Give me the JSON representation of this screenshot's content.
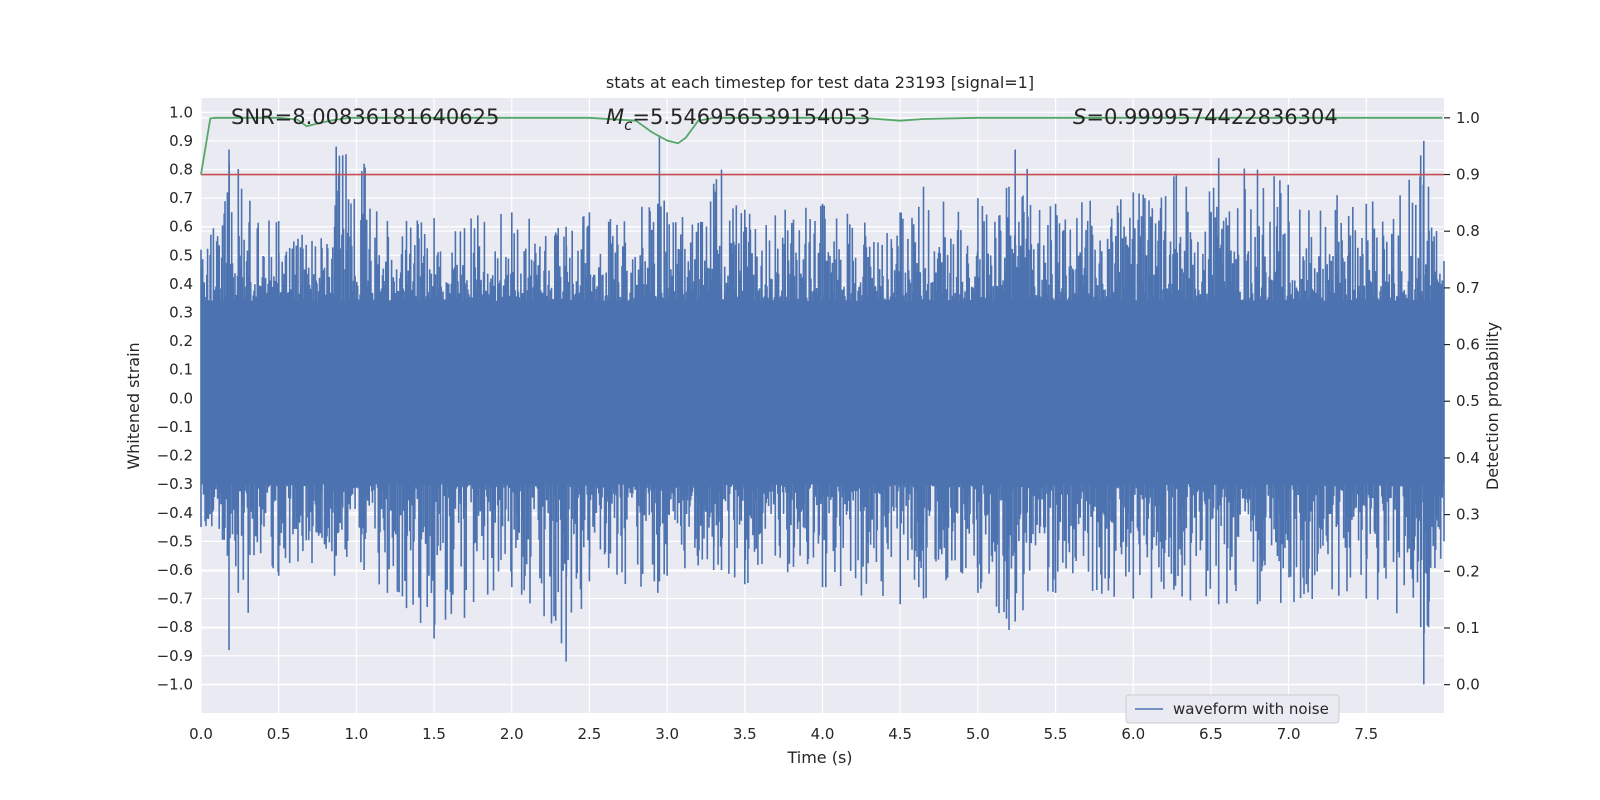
{
  "chart_data": {
    "type": "line",
    "title": "stats at each timestep for test data 23193 [signal=1]",
    "xlabel": "Time (s)",
    "ylabel": "Whitened strain",
    "y2label": "Detection probability",
    "xlim": [
      0,
      8
    ],
    "ylim": [
      -1.1,
      1.05
    ],
    "y2lim": [
      -0.05,
      1.035
    ],
    "xticks": [
      0.0,
      0.5,
      1.0,
      1.5,
      2.0,
      2.5,
      3.0,
      3.5,
      4.0,
      4.5,
      5.0,
      5.5,
      6.0,
      6.5,
      7.0,
      7.5
    ],
    "xtick_labels": [
      "0.0",
      "0.5",
      "1.0",
      "1.5",
      "2.0",
      "2.5",
      "3.0",
      "3.5",
      "4.0",
      "4.5",
      "5.0",
      "5.5",
      "6.0",
      "6.5",
      "7.0",
      "7.5"
    ],
    "yticks": [
      1.0,
      0.9,
      0.8,
      0.7,
      0.6,
      0.5,
      0.4,
      0.3,
      0.2,
      0.1,
      0.0,
      -0.1,
      -0.2,
      -0.3,
      -0.4,
      -0.5,
      -0.6,
      -0.7,
      -0.8,
      -0.9,
      -1.0
    ],
    "ytick_labels": [
      "1.0",
      "0.9",
      "0.8",
      "0.7",
      "0.6",
      "0.5",
      "0.4",
      "0.3",
      "0.2",
      "0.1",
      "0.0",
      "−0.1",
      "−0.2",
      "−0.3",
      "−0.4",
      "−0.5",
      "−0.6",
      "−0.7",
      "−0.8",
      "−0.9",
      "−1.0"
    ],
    "y2ticks": [
      1.0,
      0.9,
      0.8,
      0.7,
      0.6,
      0.5,
      0.4,
      0.3,
      0.2,
      0.1,
      0.0
    ],
    "y2tick_labels": [
      "1.0",
      "0.9",
      "0.8",
      "0.7",
      "0.6",
      "0.5",
      "0.4",
      "0.3",
      "0.2",
      "0.1",
      "0.0"
    ],
    "threshold": {
      "axis": "y2",
      "value": 0.9,
      "color": "#c44e52"
    },
    "annotations": {
      "snr": "SNR=8.00836181640625",
      "mc_symbol": "M",
      "mc_sub": "c",
      "mc_value": "=5.546956539154053",
      "s_symbol": "S",
      "s_value": "=0.9999574422836304"
    },
    "legend": {
      "location": "lower-right",
      "label": "waveform with noise"
    },
    "series": [
      {
        "name": "waveform with noise",
        "axis": "y",
        "color": "#4c72b0",
        "envelope_note": "dense noise; per-time max/min envelope",
        "t": [
          0.0,
          0.17,
          0.18,
          0.5,
          0.86,
          0.87,
          1.05,
          1.2,
          1.5,
          2.0,
          2.35,
          2.5,
          2.94,
          2.95,
          3.0,
          3.3,
          3.35,
          3.5,
          4.0,
          4.5,
          4.62,
          4.65,
          5.0,
          5.2,
          5.24,
          5.5,
          6.0,
          6.55,
          6.8,
          7.5,
          7.85,
          7.87,
          7.9,
          8.0
        ],
        "max": [
          0.52,
          0.72,
          0.87,
          0.62,
          0.6,
          0.88,
          0.82,
          0.62,
          0.63,
          0.65,
          0.6,
          0.65,
          0.68,
          0.92,
          0.65,
          0.75,
          0.8,
          0.66,
          0.68,
          0.65,
          0.67,
          0.74,
          0.7,
          0.74,
          0.87,
          0.68,
          0.72,
          0.84,
          0.8,
          0.68,
          0.85,
          0.9,
          0.74,
          0.48
        ],
        "min": [
          -0.45,
          -0.55,
          -0.88,
          -0.62,
          -0.62,
          -0.55,
          -0.6,
          -0.68,
          -0.84,
          -0.66,
          -0.92,
          -0.64,
          -0.68,
          -0.64,
          -0.62,
          -0.6,
          -0.6,
          -0.65,
          -0.66,
          -0.72,
          -0.66,
          -0.7,
          -0.68,
          -0.81,
          -0.78,
          -0.68,
          -0.7,
          -0.72,
          -0.72,
          -0.7,
          -0.8,
          -1.0,
          -0.8,
          -0.5
        ],
        "inner_max": 0.34,
        "inner_min": -0.3
      },
      {
        "name": "detection probability",
        "axis": "y2",
        "color": "#55a868",
        "x": [
          0.0,
          0.06,
          0.1,
          0.5,
          0.62,
          0.68,
          0.75,
          0.85,
          0.95,
          1.2,
          2.5,
          2.8,
          2.9,
          3.0,
          3.07,
          3.12,
          3.2,
          3.3,
          4.0,
          4.3,
          4.5,
          4.65,
          5.0,
          6.0,
          7.0,
          7.99
        ],
        "y": [
          0.9,
          0.999,
          1.0,
          1.0,
          0.997,
          0.985,
          0.99,
          0.996,
          1.0,
          1.0,
          1.0,
          0.995,
          0.975,
          0.96,
          0.955,
          0.965,
          0.995,
          1.0,
          1.0,
          0.999,
          0.995,
          0.998,
          1.0,
          1.0,
          1.0,
          1.0
        ]
      }
    ]
  }
}
